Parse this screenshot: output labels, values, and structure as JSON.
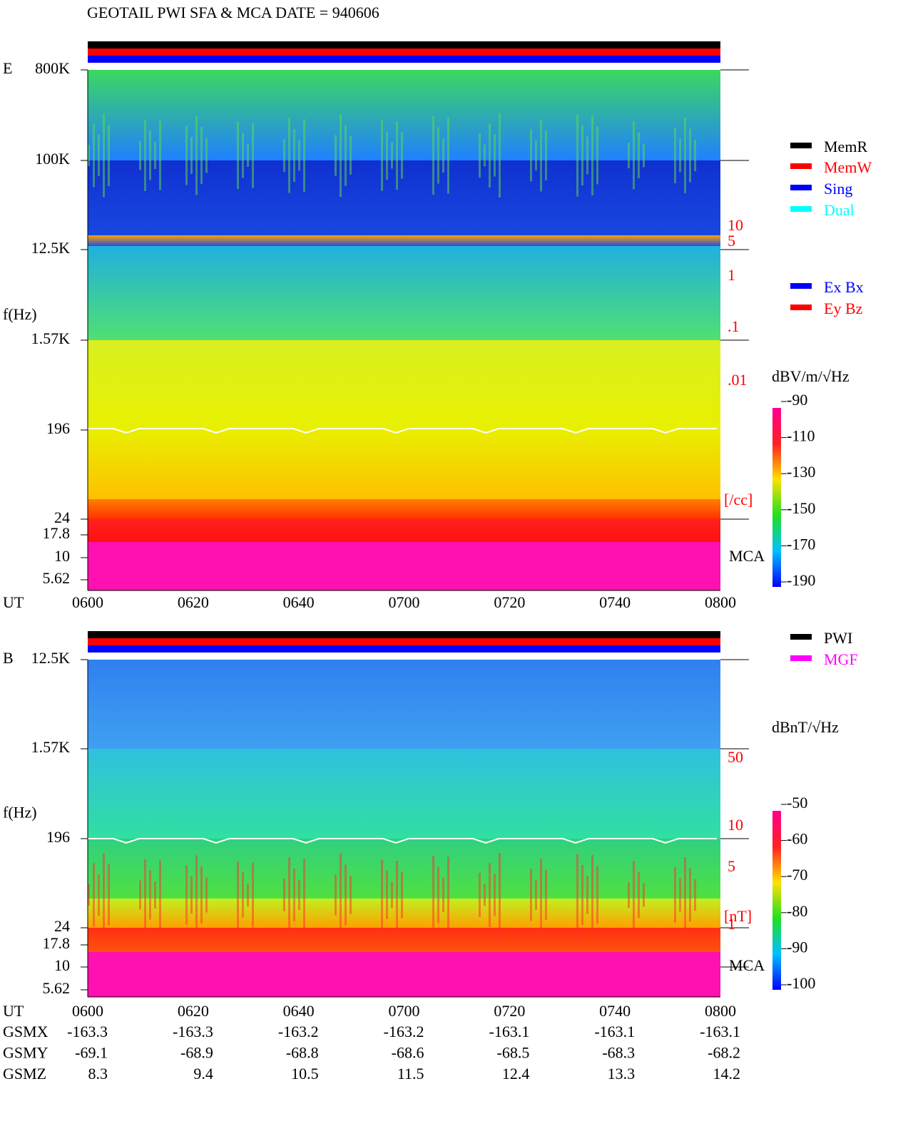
{
  "title": "GEOTAIL  PWI SFA & MCA   DATE = 940606",
  "panels": [
    {
      "label": "E",
      "ylabel": "f(Hz)",
      "yticks": [
        "800K",
        "100K",
        "12.5K",
        "1.57K",
        "196",
        "24",
        "17.8",
        "10",
        "5.62"
      ],
      "xlabel": "UT",
      "xticks": [
        "0600",
        "0620",
        "0640",
        "0700",
        "0720",
        "0740",
        "0800"
      ],
      "density_ticks": [
        "10",
        "5",
        "1",
        ".1",
        ".01"
      ],
      "density_unit": "[/cc]",
      "mca": "MCA",
      "unit": "dBV/m/√Hz",
      "colorbar_ticks": [
        -90,
        -110,
        -130,
        -150,
        -170,
        -190
      ],
      "legend": [
        {
          "label": "MemR",
          "color": "#000000"
        },
        {
          "label": "MemW",
          "color": "#ff0000"
        },
        {
          "label": "Sing",
          "color": "#0000ff"
        },
        {
          "label": "Dual",
          "color": "#00ffff"
        }
      ],
      "legend2": [
        {
          "label": "Ex Bx",
          "color": "#0000ff"
        },
        {
          "label": "Ey Bz",
          "color": "#ff0000"
        }
      ]
    },
    {
      "label": "B",
      "ylabel": "f(Hz)",
      "yticks": [
        "12.5K",
        "1.57K",
        "196",
        "24",
        "17.8",
        "10",
        "5.62"
      ],
      "xlabel": "UT",
      "xticks": [
        "0600",
        "0620",
        "0640",
        "0700",
        "0720",
        "0740",
        "0800"
      ],
      "density_ticks": [
        "50",
        "10",
        "5",
        "1"
      ],
      "density_unit": "[nT]",
      "mca": "MCA",
      "unit": "dBnT/√Hz",
      "colorbar_ticks": [
        -50,
        -60,
        -70,
        -80,
        -90,
        -100
      ],
      "legend": [
        {
          "label": "PWI",
          "color": "#000000"
        },
        {
          "label": "MGF",
          "color": "#ff00ff"
        }
      ]
    }
  ],
  "ephemeris": {
    "rows": [
      {
        "name": "GSMX",
        "values": [
          "-163.3",
          "-163.3",
          "-163.2",
          "-163.2",
          "-163.1",
          "-163.1",
          "-163.1"
        ]
      },
      {
        "name": "GSMY",
        "values": [
          "-69.1",
          "-68.9",
          "-68.8",
          "-68.6",
          "-68.5",
          "-68.3",
          "-68.2"
        ]
      },
      {
        "name": "GSMZ",
        "values": [
          "8.3",
          "9.4",
          "10.5",
          "11.5",
          "12.4",
          "13.3",
          "14.2"
        ]
      }
    ]
  }
}
